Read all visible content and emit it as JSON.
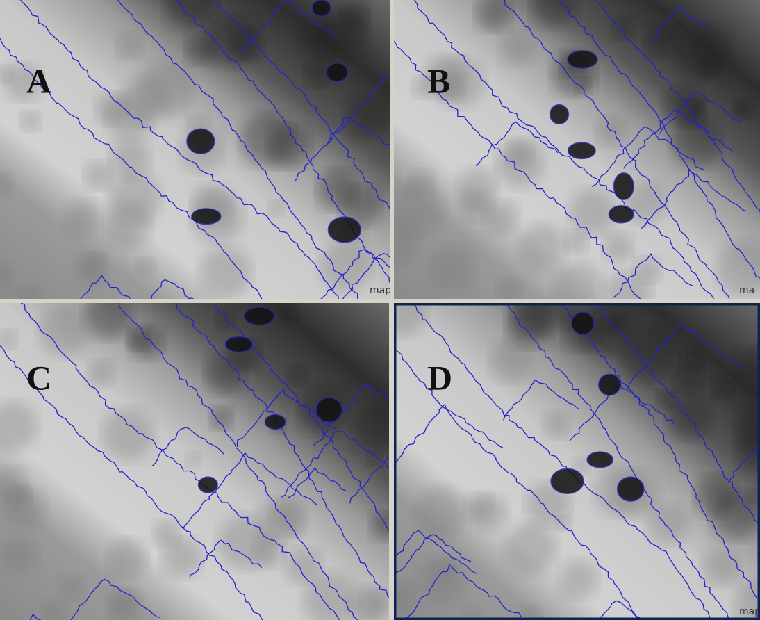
{
  "panels": [
    {
      "label": "A",
      "watermark": "map"
    },
    {
      "label": "B",
      "watermark": "ma"
    },
    {
      "label": "C"
    },
    {
      "label": "D",
      "watermark": "map"
    }
  ]
}
